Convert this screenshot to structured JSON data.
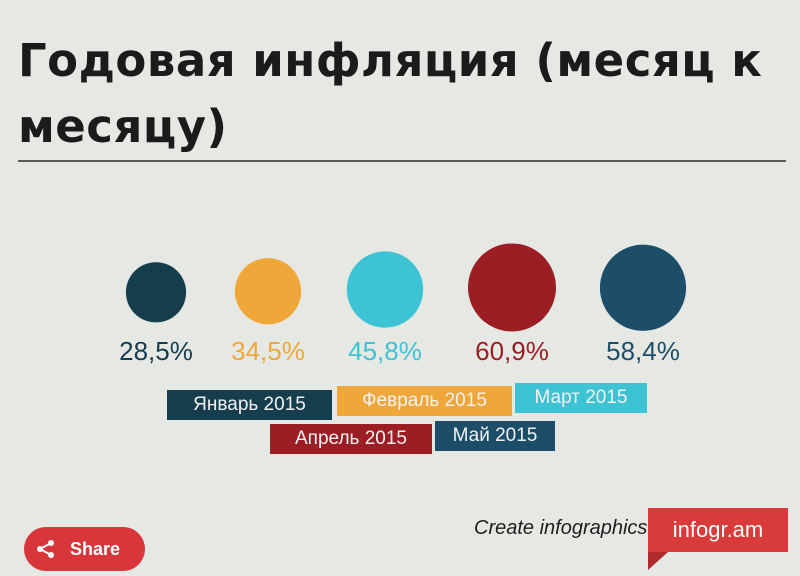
{
  "title": "Годовая инфляция (месяц к месяцу)",
  "chart_data": {
    "type": "bubble",
    "title": "Годовая инфляция (месяц к месяцу)",
    "categories": [
      "Январь 2015",
      "Февраль 2015",
      "Март 2015",
      "Апрель 2015",
      "Май 2015"
    ],
    "values": [
      28.5,
      34.5,
      45.8,
      60.9,
      58.4
    ],
    "value_labels": [
      "28,5%",
      "34,5%",
      "45,8%",
      "60,9%",
      "58,4%"
    ],
    "colors": [
      "#163d4d",
      "#f0a73a",
      "#3ec3d4",
      "#9a1e24",
      "#1c4e6a"
    ],
    "legend_placement": "bottom"
  },
  "footer": {
    "create_text": "Create infographics",
    "brand": "infogr.am",
    "share_label": "Share"
  }
}
